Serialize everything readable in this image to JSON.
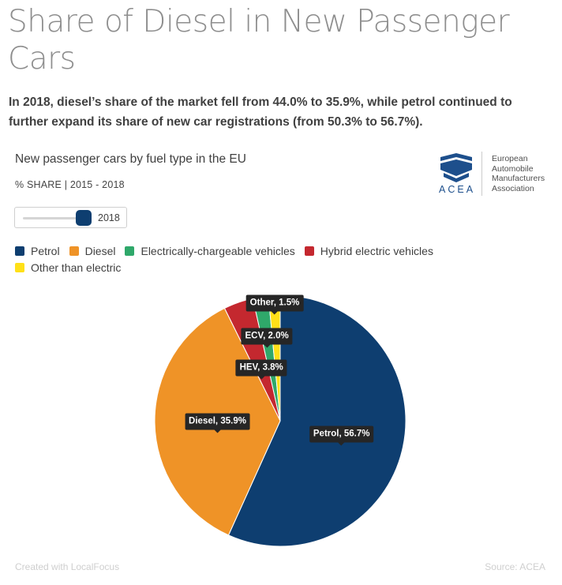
{
  "header": {
    "title": "Share of Diesel in New Passenger Cars",
    "subtitle": "In 2018, diesel’s share of the market fell from 44.0% to 35.9%, while petrol continued to further expand its share of new car registrations (from 50.3% to 56.7%)."
  },
  "logo": {
    "acronym": "ACEA",
    "org_line1": "European",
    "org_line2": "Automobile",
    "org_line3": "Manufacturers",
    "org_line4": "Association",
    "brand_color": "#1d4f8c"
  },
  "slider": {
    "value_label": "2018",
    "min": 2015,
    "max": 2018,
    "value": 2018
  },
  "footer": {
    "credit": "Created with LocalFocus",
    "source": "Source: ACEA"
  },
  "chart_data": {
    "type": "pie",
    "title": "New passenger cars by fuel type in the EU",
    "unit_label": "% SHARE | 2015 - 2018",
    "year": "2018",
    "legend_position": "top-left",
    "legend": [
      {
        "name": "Petrol",
        "color": "#0e3e70"
      },
      {
        "name": "Diesel",
        "color": "#ef9327"
      },
      {
        "name": "Electrically-chargeable vehicles",
        "color": "#2fa86a"
      },
      {
        "name": "Hybrid electric vehicles",
        "color": "#c4282f"
      },
      {
        "name": "Other than electric",
        "color": "#ffe018"
      }
    ],
    "slices": [
      {
        "name": "Petrol",
        "value": 56.7,
        "label": "Petrol, 56.7%",
        "color": "#0e3e70"
      },
      {
        "name": "Diesel",
        "value": 35.9,
        "label": "Diesel, 35.9%",
        "color": "#ef9327"
      },
      {
        "name": "Hybrid electric vehicles",
        "value": 3.8,
        "label": "HEV, 3.8%",
        "color": "#c4282f"
      },
      {
        "name": "Electrically-chargeable vehicles",
        "value": 2.0,
        "label": "ECV, 2.0%",
        "color": "#2fa86a"
      },
      {
        "name": "Other than electric",
        "value": 1.5,
        "label": "Other, 1.5%",
        "color": "#ffe018"
      }
    ]
  }
}
